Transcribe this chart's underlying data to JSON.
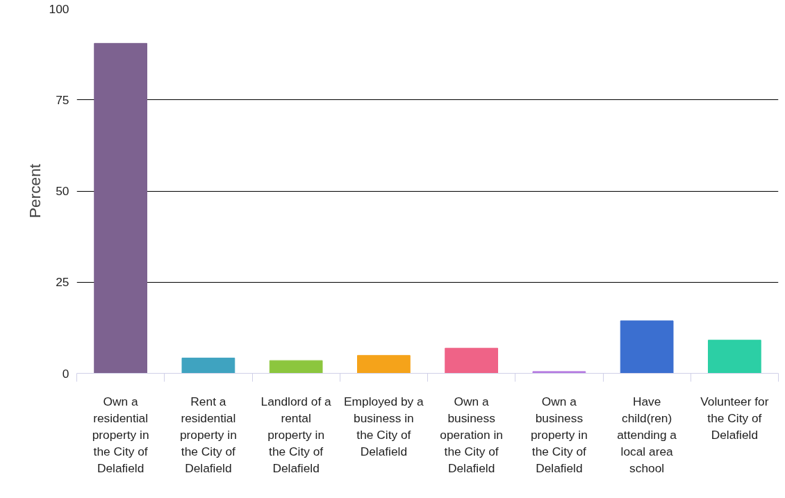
{
  "chart_data": {
    "type": "bar",
    "ylabel": "Percent",
    "categories": [
      "Own a residential property in the City of Delafield",
      "Rent a residential property in the City of Delafield",
      "Landlord of a rental property in the City of Delafield",
      "Employed by a business in the City of Delafield",
      "Own a business operation in the City of Delafield",
      "Own a business property in the City of Delafield",
      "Have child(ren) attending a local area school",
      "Volunteer for the City of Delafield"
    ],
    "values": [
      90.5,
      4.2,
      3.5,
      4.9,
      6.9,
      0.5,
      14.4,
      9.1
    ],
    "colors": [
      "#7d6290",
      "#3fa3c0",
      "#8cc63e",
      "#f5a31a",
      "#ef6387",
      "#b57be0",
      "#3b6fd0",
      "#2ccfa5"
    ],
    "ylim": [
      0,
      100
    ],
    "yticks": [
      0,
      25,
      50,
      75,
      100
    ],
    "grid": "y"
  }
}
